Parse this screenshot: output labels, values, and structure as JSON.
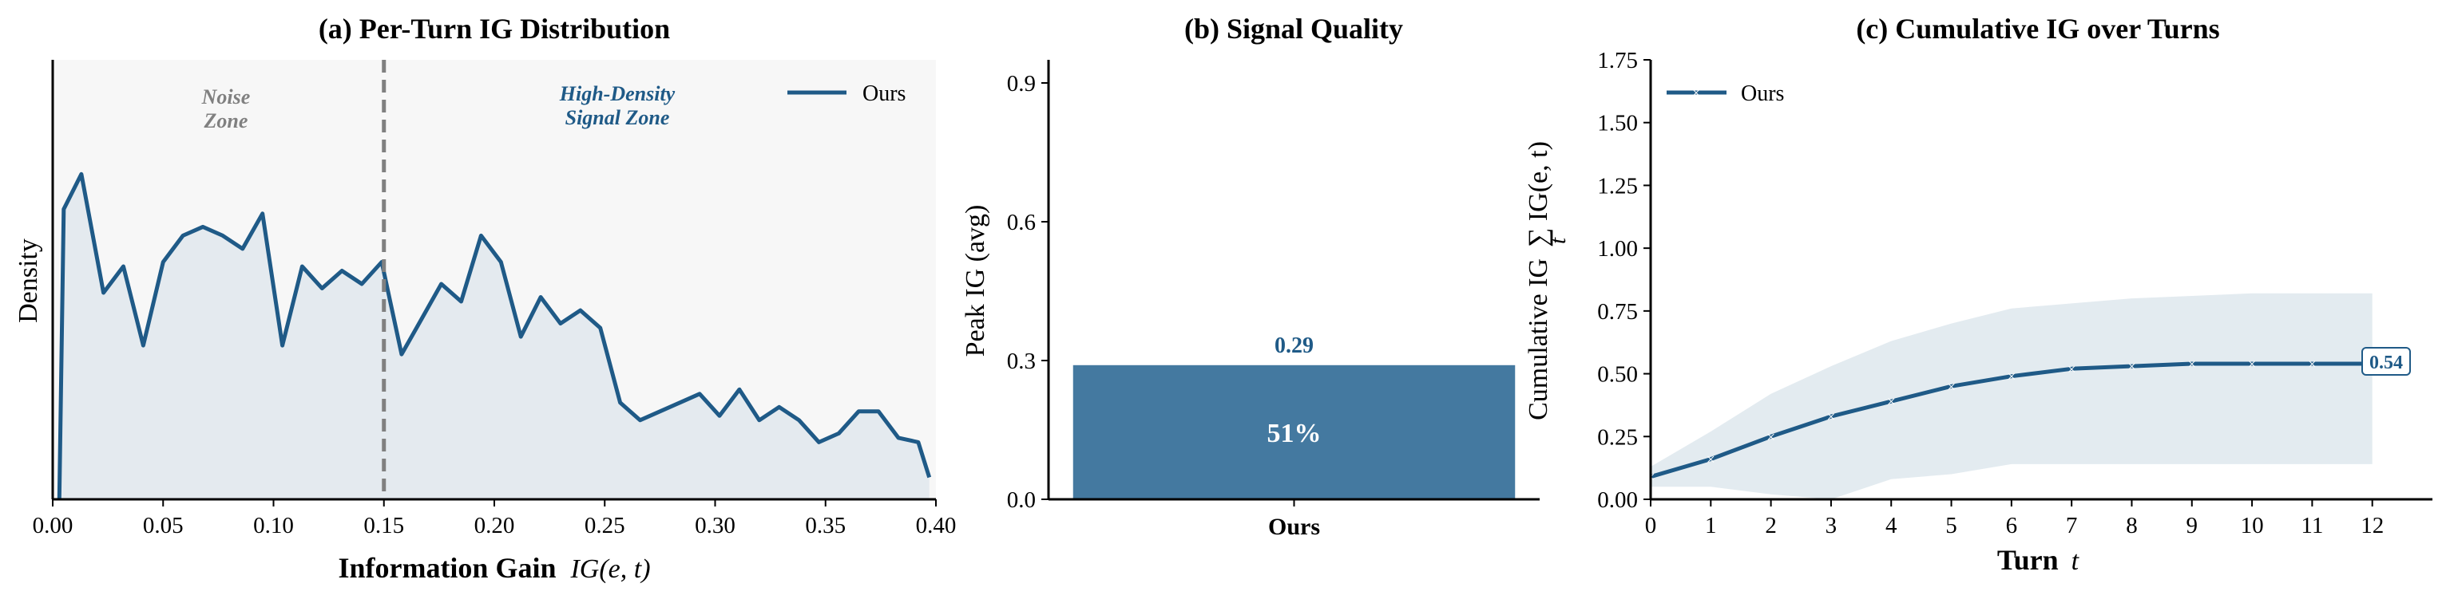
{
  "colors": {
    "series": "#1f5a87",
    "bar": "#4479a0",
    "fill": "#e1e8ed",
    "band": "#e3ebf0",
    "panel_bg": "#f7f7f7",
    "dashed": "#808080",
    "noise_text": "#808080"
  },
  "chart_data": [
    {
      "type": "area",
      "title": "(a) Per-Turn IG Distribution",
      "xlabel": "Information Gain",
      "xlabel_math": "IG(e, t)",
      "ylabel": "Density",
      "xlim": [
        0,
        0.4
      ],
      "ylim": [
        0,
        1
      ],
      "y_ticks_shown": false,
      "x_ticks": [
        "0.00",
        "0.05",
        "0.10",
        "0.15",
        "0.20",
        "0.25",
        "0.30",
        "0.35",
        "0.40"
      ],
      "threshold_x": 0.15,
      "annotations": [
        {
          "lines": [
            "Noise",
            "Zone"
          ],
          "style": "gray"
        },
        {
          "lines": [
            "High-Density",
            "Signal Zone"
          ],
          "style": "blue"
        }
      ],
      "legend": {
        "label": "Ours",
        "position": "top-right"
      },
      "series": [
        {
          "name": "Ours",
          "x": [
            0.003,
            0.005,
            0.013,
            0.023,
            0.032,
            0.041,
            0.05,
            0.059,
            0.068,
            0.077,
            0.086,
            0.095,
            0.104,
            0.113,
            0.122,
            0.131,
            0.14,
            0.149,
            0.158,
            0.167,
            0.176,
            0.185,
            0.194,
            0.203,
            0.212,
            0.221,
            0.23,
            0.239,
            0.248,
            0.257,
            0.266,
            0.275,
            0.284,
            0.293,
            0.302,
            0.311,
            0.32,
            0.329,
            0.338,
            0.347,
            0.356,
            0.365,
            0.374,
            0.383,
            0.392,
            0.397
          ],
          "values": [
            0.0,
            0.66,
            0.74,
            0.47,
            0.53,
            0.35,
            0.54,
            0.6,
            0.62,
            0.6,
            0.57,
            0.65,
            0.35,
            0.53,
            0.48,
            0.52,
            0.49,
            0.54,
            0.33,
            0.41,
            0.49,
            0.45,
            0.6,
            0.54,
            0.37,
            0.46,
            0.4,
            0.43,
            0.39,
            0.22,
            0.18,
            0.2,
            0.22,
            0.24,
            0.19,
            0.25,
            0.18,
            0.21,
            0.18,
            0.13,
            0.15,
            0.2,
            0.2,
            0.14,
            0.13,
            0.05
          ]
        }
      ]
    },
    {
      "type": "bar",
      "title": "(b) Signal Quality",
      "ylabel": "Peak IG (avg)",
      "categories": [
        "Ours"
      ],
      "values": [
        0.29
      ],
      "value_labels": [
        "0.29"
      ],
      "inner_labels": [
        "51%"
      ],
      "ylim": [
        0,
        0.95
      ],
      "y_ticks": [
        "0.0",
        "0.3",
        "0.6",
        "0.9"
      ]
    },
    {
      "type": "line",
      "title": "(c) Cumulative IG over Turns",
      "xlabel": "Turn",
      "xlabel_math": "t",
      "ylabel": "Cumulative IG",
      "ylabel_math": "∑ IG(e, t)",
      "ylabel_math_sub": "t",
      "xlim": [
        0,
        13
      ],
      "ylim": [
        0,
        1.75
      ],
      "x_ticks": [
        "0",
        "1",
        "2",
        "3",
        "4",
        "5",
        "6",
        "7",
        "8",
        "9",
        "10",
        "11",
        "12"
      ],
      "y_ticks": [
        "0.00",
        "0.25",
        "0.50",
        "0.75",
        "1.00",
        "1.25",
        "1.50",
        "1.75"
      ],
      "legend": {
        "label": "Ours",
        "position": "top-left"
      },
      "end_label": "0.54",
      "series": [
        {
          "name": "Ours",
          "x": [
            0,
            1,
            2,
            3,
            4,
            5,
            6,
            7,
            8,
            9,
            10,
            11,
            12
          ],
          "values": [
            0.09,
            0.16,
            0.25,
            0.33,
            0.39,
            0.45,
            0.49,
            0.52,
            0.53,
            0.54,
            0.54,
            0.54,
            0.54
          ],
          "band_upper": [
            0.13,
            0.27,
            0.42,
            0.53,
            0.63,
            0.7,
            0.76,
            0.78,
            0.8,
            0.81,
            0.82,
            0.82,
            0.82
          ],
          "band_lower": [
            0.05,
            0.05,
            0.02,
            0.0,
            0.08,
            0.1,
            0.14,
            0.14,
            0.14,
            0.14,
            0.14,
            0.14,
            0.14
          ]
        }
      ]
    }
  ]
}
